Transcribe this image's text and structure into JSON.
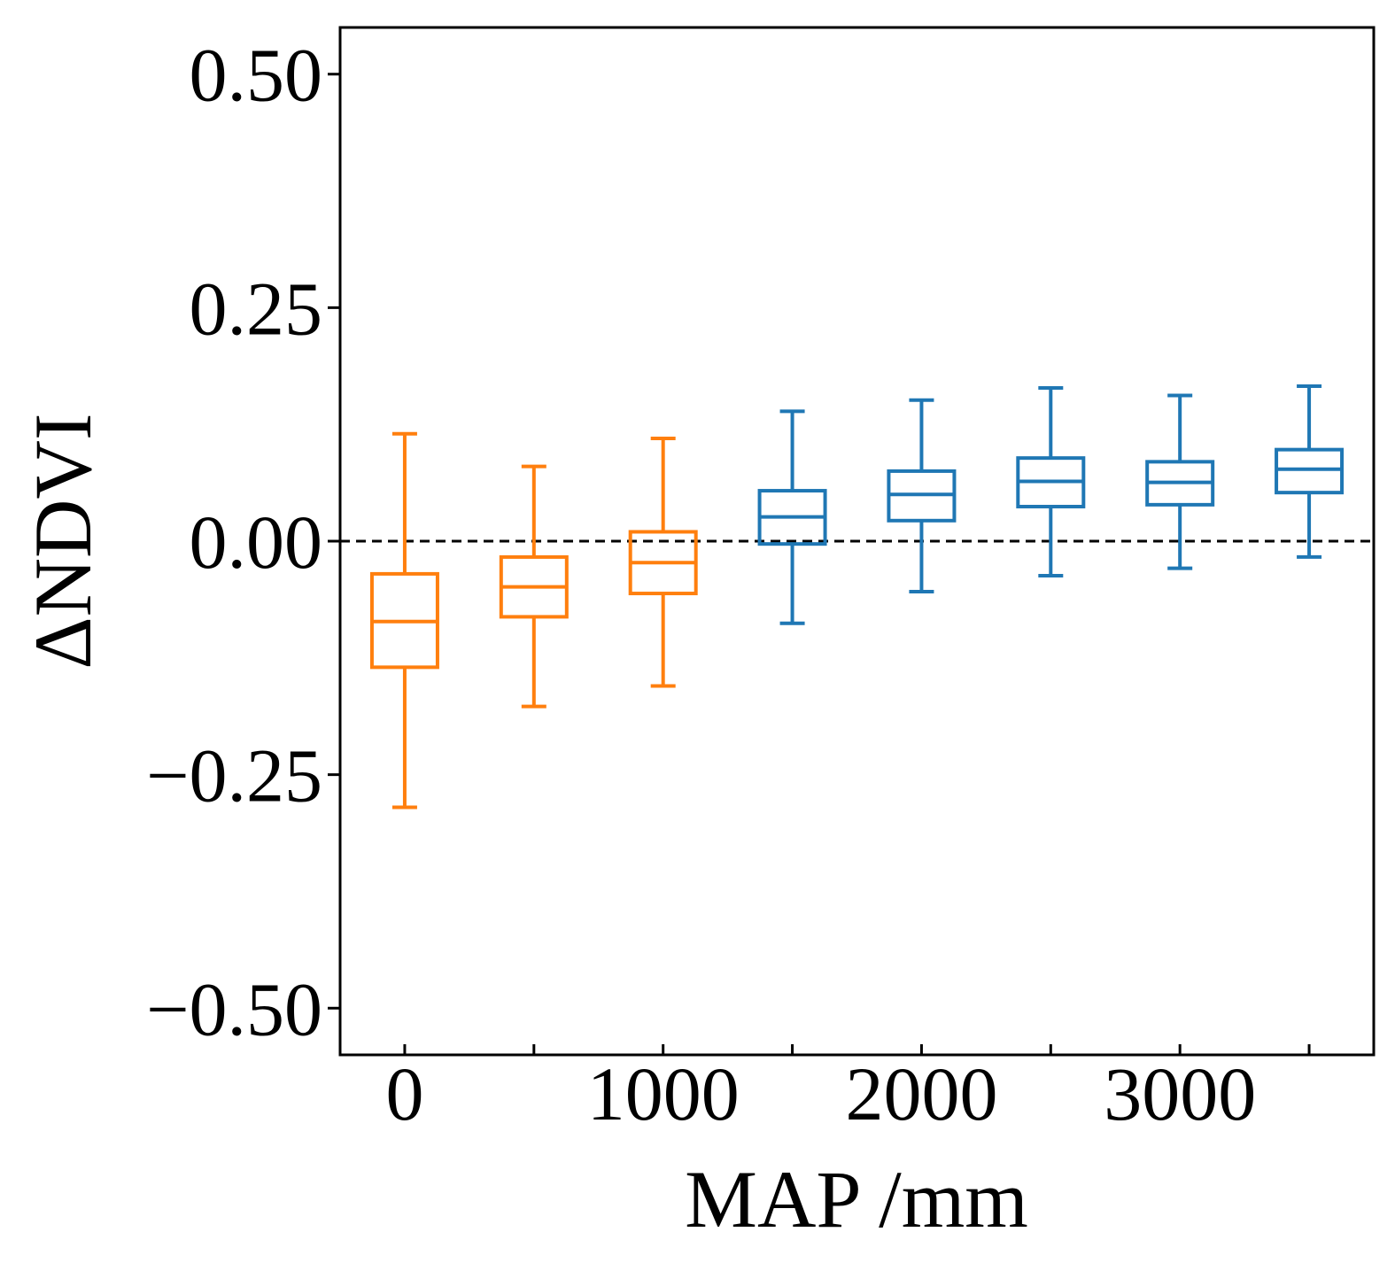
{
  "chart_data": {
    "type": "box",
    "xlabel": "MAP /mm",
    "ylabel": "ΔNDVI",
    "xlim": [
      -250,
      3750
    ],
    "ylim": [
      -0.55,
      0.55
    ],
    "xticks": {
      "major": [
        0,
        1000,
        2000,
        3000
      ],
      "major_labels": [
        "0",
        "1000",
        "2000",
        "3000"
      ],
      "minor": [
        500,
        1500,
        2500,
        3500
      ]
    },
    "yticks": {
      "values": [
        0.5,
        0.25,
        0.0,
        -0.25,
        -0.5
      ],
      "labels": [
        "0.50",
        "0.25",
        "0.00",
        "−0.25",
        "−0.50"
      ]
    },
    "reference_line": {
      "y": 0.0,
      "style": "dashed",
      "color": "#000000"
    },
    "grid": false,
    "colors": {
      "orange": "#ff7f0e",
      "blue": "#1f77b4"
    },
    "boxes": [
      {
        "x": 0,
        "color": "orange",
        "whisker_low": -0.285,
        "q1": -0.135,
        "median": -0.086,
        "q3": -0.035,
        "whisker_high": 0.115
      },
      {
        "x": 500,
        "color": "orange",
        "whisker_low": -0.177,
        "q1": -0.081,
        "median": -0.049,
        "q3": -0.017,
        "whisker_high": 0.08
      },
      {
        "x": 1000,
        "color": "orange",
        "whisker_low": -0.155,
        "q1": -0.056,
        "median": -0.023,
        "q3": 0.01,
        "whisker_high": 0.11
      },
      {
        "x": 1500,
        "color": "blue",
        "whisker_low": -0.088,
        "q1": -0.003,
        "median": 0.026,
        "q3": 0.054,
        "whisker_high": 0.139
      },
      {
        "x": 2000,
        "color": "blue",
        "whisker_low": -0.054,
        "q1": 0.022,
        "median": 0.05,
        "q3": 0.075,
        "whisker_high": 0.151
      },
      {
        "x": 2500,
        "color": "blue",
        "whisker_low": -0.037,
        "q1": 0.037,
        "median": 0.064,
        "q3": 0.089,
        "whisker_high": 0.164
      },
      {
        "x": 3000,
        "color": "blue",
        "whisker_low": -0.029,
        "q1": 0.039,
        "median": 0.063,
        "q3": 0.085,
        "whisker_high": 0.156
      },
      {
        "x": 3500,
        "color": "blue",
        "whisker_low": -0.017,
        "q1": 0.052,
        "median": 0.077,
        "q3": 0.098,
        "whisker_high": 0.166
      }
    ]
  }
}
